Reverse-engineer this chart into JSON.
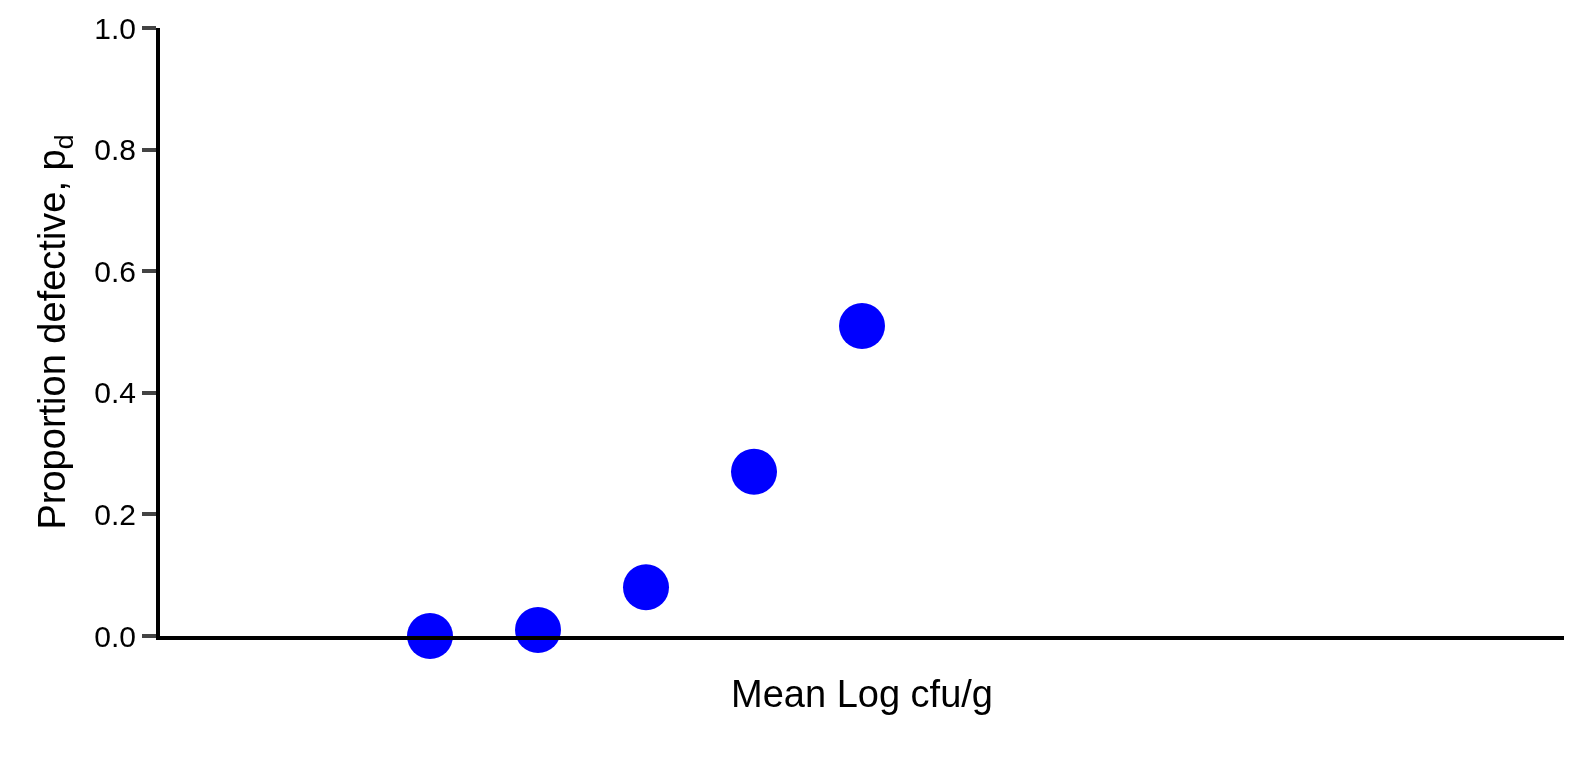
{
  "chart_data": {
    "type": "scatter",
    "xlabel": "Mean Log cfu/g",
    "ylabel": "Proportion defective, p$_{d}$",
    "categories": [
      null,
      null,
      null,
      null,
      null,
      null,
      null,
      null,
      null,
      null,
      null,
      null,
      null
    ],
    "series": [
      {
        "color": "#0000ff",
        "values": [
          null,
          null,
          0.0,
          0.01,
          0.08,
          0.27,
          0.51,
          null,
          null,
          null,
          null,
          null,
          null
        ]
      }
    ],
    "ylim": [
      0,
      1.0
    ],
    "yticks": [
      {
        "value": 0,
        "label": "0.0"
      },
      0.2,
      0.4,
      0.6,
      0.8,
      {
        "value": 1.0,
        "label": "1.0"
      }
    ],
    "marker": "circle",
    "tick_labels": "y"
  }
}
